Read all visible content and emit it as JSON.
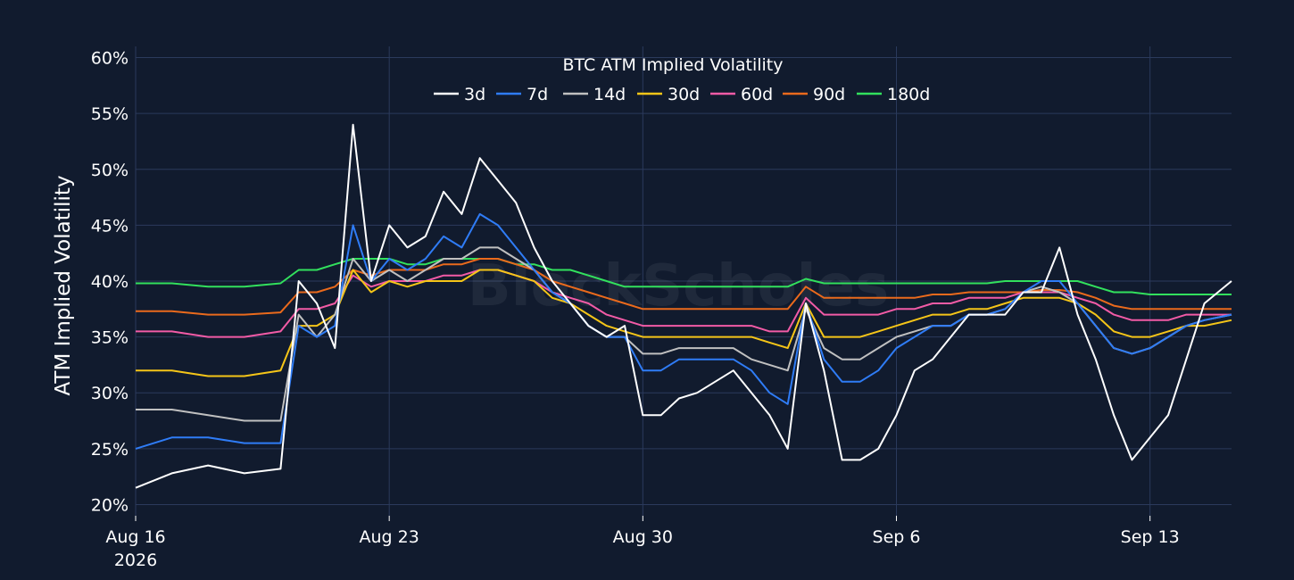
{
  "chart_data": {
    "type": "line",
    "title": "BTC ATM Implied Volatility",
    "ylabel": "ATM Implied Volatility",
    "xlabel": "",
    "ylim": [
      19,
      61
    ],
    "xlim": [
      "2026-08-16",
      "2026-09-15T06:00"
    ],
    "yticks": [
      20,
      25,
      30,
      35,
      40,
      45,
      50,
      55,
      60
    ],
    "ytick_labels": [
      "20%",
      "25%",
      "30%",
      "35%",
      "40%",
      "45%",
      "50%",
      "55%",
      "60%"
    ],
    "xticks": [
      "2026-08-16",
      "2026-08-23",
      "2026-08-30",
      "2026-09-06",
      "2026-09-13"
    ],
    "xtick_labels": [
      "Aug 16",
      "Aug 23",
      "Aug 30",
      "Sep 6",
      "Sep 13"
    ],
    "xtick_sublabel": "2026",
    "grid": true,
    "legend_position": "top-center",
    "watermark": "BlockScholes",
    "x": [
      "2026-08-16",
      "2026-08-17",
      "2026-08-18",
      "2026-08-19",
      "2026-08-20",
      "2026-08-20T12:00",
      "2026-08-21",
      "2026-08-21T12:00",
      "2026-08-22",
      "2026-08-22T12:00",
      "2026-08-23",
      "2026-08-23T12:00",
      "2026-08-24",
      "2026-08-24T12:00",
      "2026-08-25",
      "2026-08-25T12:00",
      "2026-08-26",
      "2026-08-26T12:00",
      "2026-08-27",
      "2026-08-27T12:00",
      "2026-08-28",
      "2026-08-28T12:00",
      "2026-08-29",
      "2026-08-29T12:00",
      "2026-08-30",
      "2026-08-30T12:00",
      "2026-08-31",
      "2026-08-31T12:00",
      "2026-09-01",
      "2026-09-01T12:00",
      "2026-09-02",
      "2026-09-02T12:00",
      "2026-09-03",
      "2026-09-03T12:00",
      "2026-09-04",
      "2026-09-04T12:00",
      "2026-09-05",
      "2026-09-05T12:00",
      "2026-09-06",
      "2026-09-06T12:00",
      "2026-09-07",
      "2026-09-07T12:00",
      "2026-09-08",
      "2026-09-08T12:00",
      "2026-09-09",
      "2026-09-09T12:00",
      "2026-09-10",
      "2026-09-10T12:00",
      "2026-09-11",
      "2026-09-11T12:00",
      "2026-09-12",
      "2026-09-12T12:00",
      "2026-09-13",
      "2026-09-13T12:00",
      "2026-09-14",
      "2026-09-14T12:00",
      "2026-09-15T06:00"
    ],
    "series": [
      {
        "name": "3d",
        "color": "#ffffff",
        "values": [
          21.5,
          22.8,
          23.5,
          22.8,
          23.2,
          40,
          38,
          34,
          54,
          40,
          45,
          43,
          44,
          48,
          46,
          51,
          49,
          47,
          43,
          40,
          38,
          36,
          35,
          36,
          28,
          28,
          29.5,
          30,
          31,
          32,
          30,
          28,
          25,
          38,
          32,
          24,
          24,
          25,
          28,
          32,
          33,
          35,
          37,
          37,
          37,
          39,
          39,
          43,
          37,
          33,
          28,
          24,
          26,
          28,
          33,
          38,
          40
        ]
      },
      {
        "name": "7d",
        "color": "#2f7cf6",
        "values": [
          25,
          26,
          26,
          25.5,
          25.5,
          36,
          35,
          36,
          45,
          40,
          42,
          41,
          42,
          44,
          43,
          46,
          45,
          43,
          41,
          39,
          38,
          36,
          35,
          35,
          32,
          32,
          33,
          33,
          33,
          33,
          32,
          30,
          29,
          38,
          33,
          31,
          31,
          32,
          34,
          35,
          36,
          36,
          37,
          37,
          37.5,
          39,
          40,
          40,
          38,
          36,
          34,
          33.5,
          34,
          35,
          36,
          36.5,
          37
        ]
      },
      {
        "name": "14d",
        "color": "#c0c0c0",
        "values": [
          28.5,
          28.5,
          28,
          27.5,
          27.5,
          37,
          35,
          37,
          42,
          40,
          41,
          40,
          41,
          42,
          42,
          43,
          43,
          42,
          41,
          39,
          38,
          36,
          35,
          35,
          33.5,
          33.5,
          34,
          34,
          34,
          34,
          33,
          32.5,
          32,
          37.5,
          34,
          33,
          33,
          34,
          35,
          35.5,
          36,
          36,
          37,
          37,
          37.5,
          39,
          39.5,
          39,
          38,
          36,
          34,
          33.5,
          34,
          35,
          36,
          36.5,
          37
        ]
      },
      {
        "name": "30d",
        "color": "#f5c518",
        "values": [
          32,
          32,
          31.5,
          31.5,
          32,
          36,
          36,
          37,
          41,
          39,
          40,
          39.5,
          40,
          40,
          40,
          41,
          41,
          40.5,
          40,
          38.5,
          38,
          37,
          36,
          35.5,
          35,
          35,
          35,
          35,
          35,
          35,
          35,
          34.5,
          34,
          38,
          35,
          35,
          35,
          35.5,
          36,
          36.5,
          37,
          37,
          37.5,
          37.5,
          38,
          38.5,
          38.5,
          38.5,
          38,
          37,
          35.5,
          35,
          35,
          35.5,
          36,
          36,
          36.5
        ]
      },
      {
        "name": "60d",
        "color": "#f25ba6",
        "values": [
          35.5,
          35.5,
          35,
          35,
          35.5,
          37.5,
          37.5,
          38,
          40.5,
          39.5,
          40,
          40,
          40,
          40.5,
          40.5,
          41,
          41,
          40.5,
          40,
          39,
          38.5,
          38,
          37,
          36.5,
          36,
          36,
          36,
          36,
          36,
          36,
          36,
          35.5,
          35.5,
          38.5,
          37,
          37,
          37,
          37,
          37.5,
          37.5,
          38,
          38,
          38.5,
          38.5,
          38.5,
          39,
          39,
          39,
          38.5,
          38,
          37,
          36.5,
          36.5,
          36.5,
          37,
          37,
          37
        ]
      },
      {
        "name": "90d",
        "color": "#ea6a1c",
        "values": [
          37.3,
          37.3,
          37,
          37,
          37.2,
          39,
          39,
          39.5,
          41,
          40.5,
          41,
          41,
          41,
          41.5,
          41.5,
          42,
          42,
          41.5,
          41,
          40,
          39.5,
          39,
          38.5,
          38,
          37.5,
          37.5,
          37.5,
          37.5,
          37.5,
          37.5,
          37.5,
          37.5,
          37.5,
          39.5,
          38.5,
          38.5,
          38.5,
          38.5,
          38.5,
          38.5,
          38.8,
          38.8,
          39,
          39,
          39,
          39,
          39.2,
          39.2,
          39,
          38.5,
          37.8,
          37.5,
          37.5,
          37.5,
          37.5,
          37.5,
          37.5
        ]
      },
      {
        "name": "180d",
        "color": "#32e05d",
        "values": [
          39.8,
          39.8,
          39.5,
          39.5,
          39.8,
          41,
          41,
          41.5,
          42,
          42,
          42,
          41.5,
          41.5,
          42,
          42,
          42,
          42,
          41.5,
          41.5,
          41,
          41,
          40.5,
          40,
          39.5,
          39.5,
          39.5,
          39.5,
          39.5,
          39.5,
          39.5,
          39.5,
          39.5,
          39.5,
          40.2,
          39.8,
          39.8,
          39.8,
          39.8,
          39.8,
          39.8,
          39.8,
          39.8,
          39.8,
          39.8,
          40,
          40,
          40,
          40,
          40,
          39.5,
          39,
          39,
          38.8,
          38.8,
          38.8,
          38.8,
          38.8
        ]
      }
    ]
  }
}
